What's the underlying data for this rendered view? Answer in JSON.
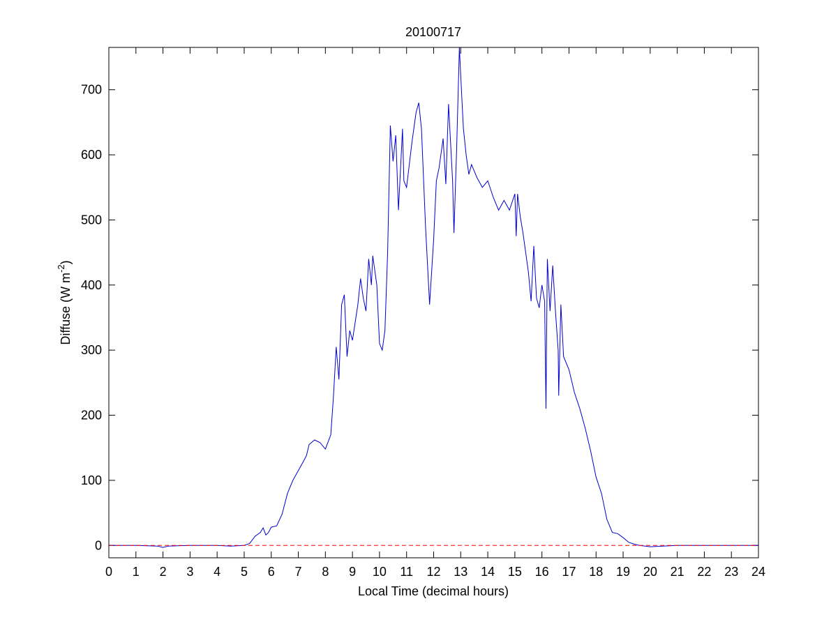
{
  "chart_data": {
    "type": "line",
    "title": "20100717",
    "xlabel": "Local Time (decimal hours)",
    "ylabel": {
      "text": "Diffuse (W m",
      "superscript": "-2",
      "suffix": ")"
    },
    "xlim": [
      0,
      24
    ],
    "ylim": [
      -19,
      765
    ],
    "xticks": [
      0,
      1,
      2,
      3,
      4,
      5,
      6,
      7,
      8,
      9,
      10,
      11,
      12,
      13,
      14,
      15,
      16,
      17,
      18,
      19,
      20,
      21,
      22,
      23,
      24
    ],
    "yticks": [
      0,
      100,
      200,
      300,
      400,
      500,
      600,
      700
    ],
    "grid": false,
    "reference_line": {
      "value": 0,
      "color": "#ff0000",
      "style": "dashed"
    },
    "series": [
      {
        "color": "#0000cc",
        "x": [
          0,
          1,
          1.8,
          2,
          2.2,
          3,
          4,
          4.5,
          5,
          5.2,
          5.4,
          5.6,
          5.7,
          5.8,
          5.9,
          6,
          6.2,
          6.4,
          6.6,
          6.8,
          7,
          7.2,
          7.3,
          7.4,
          7.6,
          7.8,
          8,
          8.2,
          8.3,
          8.4,
          8.5,
          8.6,
          8.7,
          8.8,
          8.9,
          9,
          9.2,
          9.3,
          9.4,
          9.5,
          9.6,
          9.7,
          9.75,
          9.9,
          10,
          10.1,
          10.2,
          10.3,
          10.4,
          10.5,
          10.6,
          10.7,
          10.85,
          10.9,
          11,
          11.2,
          11.35,
          11.45,
          11.55,
          11.7,
          11.85,
          12,
          12.1,
          12.2,
          12.35,
          12.45,
          12.55,
          12.7,
          12.75,
          12.85,
          12.95,
          13.05,
          13.1,
          13.2,
          13.3,
          13.4,
          13.6,
          13.8,
          14,
          14.2,
          14.4,
          14.6,
          14.8,
          15,
          15.05,
          15.1,
          15.2,
          15.3,
          15.4,
          15.5,
          15.6,
          15.7,
          15.8,
          15.9,
          16,
          16.1,
          16.15,
          16.2,
          16.3,
          16.4,
          16.5,
          16.6,
          16.62,
          16.7,
          16.8,
          17,
          17.2,
          17.4,
          17.6,
          17.8,
          18,
          18.2,
          18.4,
          18.6,
          18.8,
          19,
          19.2,
          19.4,
          19.6,
          20,
          21,
          22,
          23,
          24
        ],
        "values": [
          0,
          0,
          -1,
          -3,
          -1,
          0,
          0,
          -1,
          0,
          3,
          14,
          20,
          27,
          16,
          20,
          28,
          30,
          48,
          80,
          100,
          115,
          130,
          138,
          155,
          162,
          158,
          148,
          170,
          230,
          305,
          255,
          370,
          385,
          290,
          330,
          315,
          370,
          410,
          380,
          360,
          440,
          400,
          445,
          400,
          310,
          300,
          330,
          450,
          645,
          590,
          630,
          515,
          640,
          560,
          550,
          620,
          665,
          680,
          640,
          490,
          370,
          470,
          560,
          580,
          625,
          555,
          678,
          560,
          480,
          610,
          765,
          680,
          640,
          600,
          570,
          585,
          565,
          550,
          560,
          535,
          515,
          530,
          515,
          540,
          475,
          540,
          505,
          480,
          450,
          420,
          375,
          460,
          380,
          365,
          400,
          375,
          210,
          440,
          360,
          430,
          360,
          300,
          230,
          370,
          290,
          270,
          235,
          210,
          180,
          145,
          105,
          80,
          40,
          20,
          18,
          12,
          5,
          2,
          0,
          -2,
          0,
          0,
          0,
          0
        ]
      }
    ]
  }
}
